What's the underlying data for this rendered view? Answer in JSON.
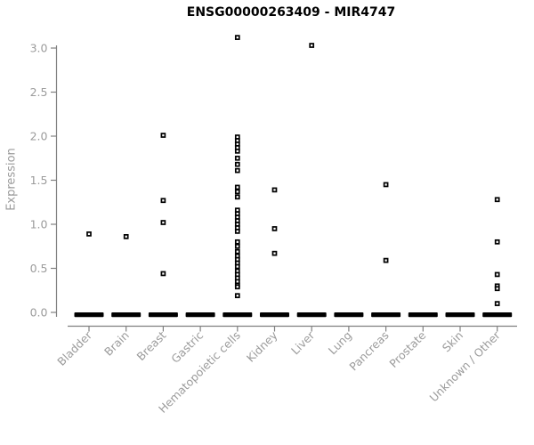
{
  "title": "ENSG00000263409 - MIR4747",
  "chart_data": {
    "type": "scatter",
    "subtype": "strip-plot",
    "title": "ENSG00000263409 - MIR4747",
    "xlabel": "",
    "ylabel": "Expression",
    "ylim": [
      0,
      3.2
    ],
    "y_ticks": [
      "0.0",
      "0.5",
      "1.0",
      "1.5",
      "2.0",
      "2.5",
      "3.0"
    ],
    "grid": false,
    "legend_position": "none",
    "marker": "small-open-square",
    "zero_bar_note": "thick black dash = dense cluster of samples at expression 0 in every category",
    "colors": {
      "points": "#000000",
      "zero_bar": "#000000",
      "axis_line": "#808080",
      "tick_text": "#9b9b9b",
      "title_text": "#000000",
      "background": "#ffffff"
    },
    "categories": [
      "Bladder",
      "Brain",
      "Breast",
      "Gastric",
      "Hematopoietic cells",
      "Kidney",
      "Liver",
      "Lung",
      "Pancreas",
      "Prostate",
      "Skin",
      "Unknown / Other"
    ],
    "series": [
      {
        "name": "Bladder",
        "zero_bar": true,
        "values": [
          0.89
        ]
      },
      {
        "name": "Brain",
        "zero_bar": true,
        "values": [
          0.86
        ]
      },
      {
        "name": "Breast",
        "zero_bar": true,
        "values": [
          2.01,
          1.27,
          1.02,
          0.44
        ]
      },
      {
        "name": "Gastric",
        "zero_bar": true,
        "values": []
      },
      {
        "name": "Hematopoietic cells",
        "zero_bar": true,
        "values": [
          3.12,
          1.99,
          1.95,
          1.91,
          1.87,
          1.83,
          1.75,
          1.68,
          1.61,
          1.42,
          1.37,
          1.31,
          1.16,
          1.12,
          1.08,
          1.04,
          1.0,
          0.96,
          0.92,
          0.8,
          0.75,
          0.69,
          0.64,
          0.6,
          0.56,
          0.52,
          0.47,
          0.43,
          0.39,
          0.35,
          0.31,
          0.29,
          0.19
        ]
      },
      {
        "name": "Kidney",
        "zero_bar": true,
        "values": [
          1.39,
          0.95,
          0.67
        ]
      },
      {
        "name": "Liver",
        "zero_bar": true,
        "values": [
          3.03
        ]
      },
      {
        "name": "Lung",
        "zero_bar": true,
        "values": []
      },
      {
        "name": "Pancreas",
        "zero_bar": true,
        "values": [
          1.45,
          0.59
        ]
      },
      {
        "name": "Prostate",
        "zero_bar": true,
        "values": []
      },
      {
        "name": "Skin",
        "zero_bar": true,
        "values": []
      },
      {
        "name": "Unknown / Other",
        "zero_bar": true,
        "values": [
          1.28,
          0.8,
          0.43,
          0.3,
          0.27,
          0.1
        ]
      }
    ]
  }
}
